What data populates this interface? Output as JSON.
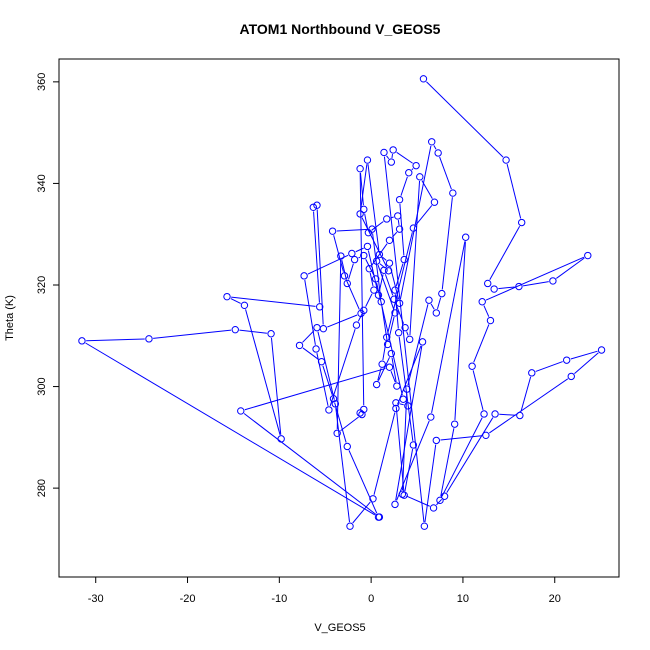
{
  "chart_data": {
    "type": "scatter",
    "title": "ATOM1 Northbound V_GEOS5",
    "xlabel": "V_GEOS5",
    "ylabel": "Theta (K)",
    "xlim": [
      -34,
      27
    ],
    "ylim": [
      262.5,
      364.5
    ],
    "xticks": [
      -30,
      -20,
      -10,
      0,
      10,
      20
    ],
    "yticks": [
      280,
      300,
      320,
      340,
      360
    ],
    "grid": false,
    "legend": "none",
    "series_color": "#0000FF",
    "connected": true,
    "series": [
      {
        "name": "",
        "points": [
          [
            5.7,
            360.6
          ],
          [
            14.7,
            344.6
          ],
          [
            16.4,
            332.3
          ],
          [
            12.7,
            320.3
          ],
          [
            13.4,
            319.2
          ],
          [
            16.1,
            319.7
          ],
          [
            19.8,
            320.8
          ],
          [
            23.6,
            325.8
          ],
          [
            12.1,
            316.7
          ],
          [
            13.0,
            313.0
          ],
          [
            11.0,
            304.0
          ],
          [
            12.3,
            294.6
          ],
          [
            7.5,
            277.6
          ],
          [
            9.1,
            292.6
          ],
          [
            10.3,
            329.4
          ],
          [
            6.5,
            294.0
          ],
          [
            2.6,
            276.8
          ],
          [
            5.6,
            308.8
          ],
          [
            2.7,
            295.7
          ],
          [
            0.2,
            277.9
          ],
          [
            -2.3,
            272.5
          ],
          [
            -3.9,
            296.6
          ],
          [
            -5.9,
            311.6
          ],
          [
            -7.8,
            308.1
          ],
          [
            -5.4,
            304.9
          ],
          [
            -4.1,
            297.6
          ],
          [
            -2.6,
            288.2
          ],
          [
            0.8,
            274.3
          ],
          [
            -31.5,
            309.0
          ],
          [
            -24.2,
            309.4
          ],
          [
            -14.8,
            311.2
          ],
          [
            -10.9,
            310.4
          ],
          [
            -9.8,
            289.7
          ],
          [
            -13.8,
            316.0
          ],
          [
            -15.7,
            317.7
          ],
          [
            -5.6,
            315.7
          ],
          [
            -6.3,
            335.3
          ],
          [
            -5.9,
            335.7
          ],
          [
            -5.2,
            311.4
          ],
          [
            -1.1,
            314.4
          ],
          [
            -2.9,
            321.8
          ],
          [
            -4.2,
            330.6
          ],
          [
            0.1,
            331.0
          ],
          [
            1.1,
            316.7
          ],
          [
            1.8,
            308.3
          ],
          [
            2.6,
            314.5
          ],
          [
            0.6,
            324.7
          ],
          [
            1.9,
            322.8
          ],
          [
            -1.2,
            334.0
          ],
          [
            -0.4,
            344.6
          ],
          [
            0.9,
            326.0
          ],
          [
            2.0,
            324.3
          ],
          [
            3.1,
            316.4
          ],
          [
            6.6,
            348.2
          ],
          [
            7.3,
            346.0
          ],
          [
            8.9,
            338.1
          ],
          [
            7.7,
            318.3
          ],
          [
            7.1,
            314.5
          ],
          [
            6.3,
            317.0
          ],
          [
            3.9,
            299.5
          ],
          [
            3.4,
            278.8
          ],
          [
            6.8,
            276.1
          ],
          [
            8.0,
            278.4
          ],
          [
            13.5,
            294.6
          ],
          [
            16.2,
            294.3
          ],
          [
            17.5,
            302.7
          ],
          [
            21.3,
            305.2
          ],
          [
            25.1,
            307.2
          ],
          [
            21.8,
            302.0
          ],
          [
            12.5,
            290.4
          ],
          [
            7.1,
            289.4
          ],
          [
            5.8,
            272.5
          ],
          [
            1.4,
            346.1
          ],
          [
            2.2,
            344.2
          ],
          [
            2.4,
            346.6
          ],
          [
            4.9,
            343.5
          ],
          [
            4.1,
            342.1
          ],
          [
            3.1,
            336.8
          ],
          [
            3.6,
            325.0
          ],
          [
            2.6,
            319.0
          ],
          [
            3.0,
            310.6
          ],
          [
            4.6,
            288.5
          ],
          [
            3.6,
            278.6
          ],
          [
            2.7,
            296.8
          ],
          [
            4.0,
            296.2
          ],
          [
            3.5,
            297.5
          ],
          [
            0.5,
            321.2
          ],
          [
            -0.8,
            325.8
          ],
          [
            -1.8,
            325.0
          ],
          [
            -2.6,
            320.3
          ],
          [
            -3.3,
            325.7
          ],
          [
            -3.7,
            290.8
          ],
          [
            -1.0,
            294.5
          ],
          [
            -1.2,
            294.8
          ],
          [
            -0.8,
            295.5
          ],
          [
            -1.2,
            342.9
          ],
          [
            -0.8,
            334.9
          ],
          [
            -0.3,
            330.3
          ],
          [
            1.7,
            333.0
          ],
          [
            2.9,
            333.6
          ],
          [
            3.1,
            331.0
          ],
          [
            2.0,
            328.8
          ],
          [
            -0.2,
            323.2
          ],
          [
            0.3,
            319.0
          ],
          [
            -0.8,
            315.0
          ],
          [
            -1.6,
            312.1
          ],
          [
            -4.6,
            295.4
          ],
          [
            -6.0,
            307.4
          ],
          [
            -7.3,
            321.8
          ],
          [
            -2.1,
            326.2
          ],
          [
            -0.4,
            327.6
          ],
          [
            0.8,
            318.0
          ],
          [
            1.4,
            322.9
          ],
          [
            2.5,
            317.2
          ],
          [
            3.7,
            311.6
          ],
          [
            4.2,
            309.3
          ],
          [
            5.3,
            341.3
          ],
          [
            6.9,
            336.3
          ],
          [
            4.6,
            331.2
          ],
          [
            1.7,
            309.7
          ],
          [
            1.2,
            304.4
          ],
          [
            0.6,
            300.4
          ],
          [
            2.2,
            306.5
          ],
          [
            2.8,
            300.1
          ],
          [
            2.0,
            303.8
          ],
          [
            -14.2,
            295.2
          ],
          [
            0.9,
            274.3
          ]
        ]
      }
    ]
  }
}
